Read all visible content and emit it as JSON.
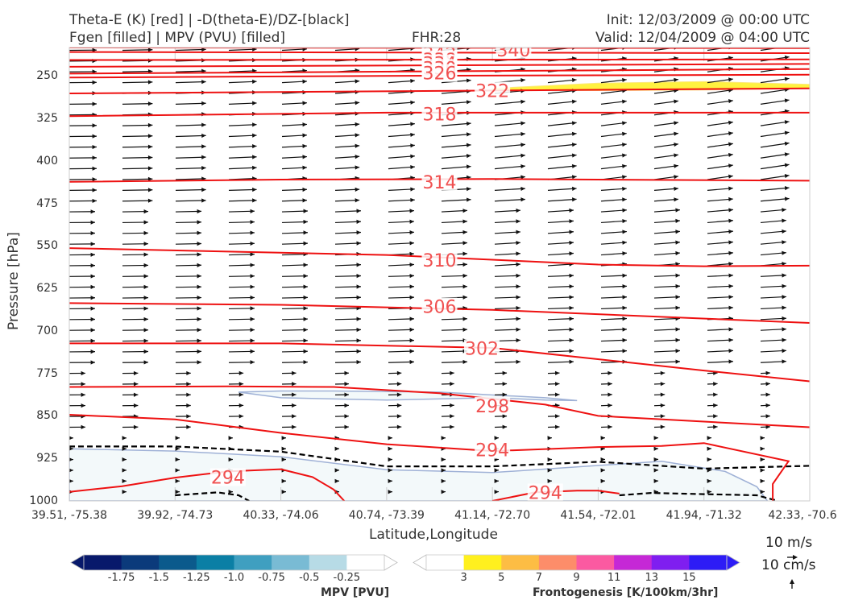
{
  "header": {
    "title_left_1": "Theta-E (K) [red] | -D(theta-E)/DZ-[black]",
    "title_left_2": "Fgen [filled] | MPV (PVU) [filled]",
    "fhr": "FHR:28",
    "init": "Init: 12/03/2009 @ 00:00 UTC",
    "valid": "Valid: 12/04/2009 @ 04:00 UTC"
  },
  "chart_data": {
    "type": "cross-section",
    "xlabel": "Latitude,Longitude",
    "ylabel": "Pressure [hPa]",
    "x_ticks": [
      "39.51, -75.38",
      "39.92, -74.73",
      "40.33, -74.06",
      "40.74, -73.39",
      "41.14, -72.70",
      "41.54, -72.01",
      "41.94, -71.32",
      "42.33, -70.6"
    ],
    "y_ticks": [
      250,
      325,
      400,
      475,
      550,
      625,
      700,
      775,
      850,
      925,
      1000
    ],
    "ylim": [
      1000,
      200
    ],
    "theta_e_contours": [
      {
        "label": "340",
        "points": [
          [
            0,
            200
          ],
          [
            7,
            201
          ]
        ]
      },
      {
        "label": "342",
        "points": [
          [
            0,
            208
          ],
          [
            7,
            210
          ]
        ]
      },
      {
        "label": "338",
        "points": [
          [
            0,
            222
          ],
          [
            7,
            221
          ]
        ]
      },
      {
        "label": "334",
        "points": [
          [
            0,
            234
          ],
          [
            7,
            229
          ]
        ]
      },
      {
        "label": "330",
        "points": [
          [
            0,
            246
          ],
          [
            7,
            238
          ]
        ]
      },
      {
        "label": "326",
        "points": [
          [
            0,
            253
          ],
          [
            3,
            250
          ],
          [
            5,
            249
          ],
          [
            7,
            248
          ]
        ]
      },
      {
        "label": "322",
        "points": [
          [
            0,
            281
          ],
          [
            7,
            272
          ]
        ]
      },
      {
        "label": "318",
        "points": [
          [
            0,
            321
          ],
          [
            3,
            315
          ],
          [
            7,
            315
          ]
        ]
      },
      {
        "label": "314",
        "points": [
          [
            0,
            437
          ],
          [
            2,
            433
          ],
          [
            4,
            432
          ],
          [
            7,
            435
          ]
        ]
      },
      {
        "label": "310",
        "points": [
          [
            0,
            554
          ],
          [
            3,
            566
          ],
          [
            5,
            583
          ],
          [
            6,
            586
          ],
          [
            7,
            585
          ]
        ]
      },
      {
        "label": "306",
        "points": [
          [
            0,
            651
          ],
          [
            2,
            654
          ],
          [
            4,
            663
          ],
          [
            7,
            686
          ]
        ]
      },
      {
        "label": "302",
        "points": [
          [
            0,
            722
          ],
          [
            2,
            722
          ],
          [
            4,
            730
          ],
          [
            6,
            770
          ],
          [
            7,
            789
          ]
        ]
      },
      {
        "label": "298",
        "points": [
          [
            0,
            799
          ],
          [
            1.5,
            798
          ],
          [
            2.5,
            799
          ],
          [
            3.5,
            810
          ],
          [
            4.5,
            830
          ],
          [
            5,
            850
          ],
          [
            6,
            860
          ],
          [
            7,
            870
          ]
        ]
      },
      {
        "label": "294",
        "points": [
          [
            0,
            848
          ],
          [
            1,
            856
          ],
          [
            2,
            880
          ],
          [
            3,
            900
          ],
          [
            4,
            912
          ],
          [
            5,
            905
          ],
          [
            5.6,
            903
          ],
          [
            6,
            898
          ],
          [
            6.8,
            930
          ],
          [
            6.65,
            970
          ],
          [
            6.65,
            1000
          ]
        ]
      },
      {
        "label": "294",
        "points": [
          [
            0,
            984
          ],
          [
            0.5,
            974
          ],
          [
            1,
            959
          ],
          [
            1.5,
            948
          ],
          [
            2,
            944
          ],
          [
            2.3,
            958
          ],
          [
            2.5,
            980
          ],
          [
            2.6,
            1000
          ]
        ]
      },
      {
        "label": "294",
        "points": [
          [
            4,
            1000
          ],
          [
            4.4,
            985
          ],
          [
            4.8,
            982
          ],
          [
            5,
            982
          ],
          [
            5.2,
            987
          ]
        ]
      }
    ],
    "dthetae_dz_contours": [
      {
        "style": "dashed",
        "points": [
          [
            0,
            904
          ],
          [
            1,
            904
          ],
          [
            2,
            913
          ],
          [
            3,
            939
          ],
          [
            4,
            939
          ],
          [
            5,
            931
          ],
          [
            6,
            943
          ],
          [
            7,
            938
          ]
        ]
      },
      {
        "style": "dashed",
        "points": [
          [
            1,
            990
          ],
          [
            1.4,
            985
          ],
          [
            1.6,
            990
          ],
          [
            1.7,
            1000
          ]
        ]
      },
      {
        "style": "dashed",
        "points": [
          [
            5.2,
            990
          ],
          [
            5.5,
            986
          ],
          [
            6,
            988
          ],
          [
            6.5,
            990
          ],
          [
            6.7,
            1000
          ]
        ]
      }
    ],
    "mpv_regions": [
      {
        "points": [
          [
            0,
            908
          ],
          [
            1,
            912
          ],
          [
            2,
            922
          ],
          [
            3,
            945
          ],
          [
            4,
            950
          ],
          [
            4.8,
            940
          ],
          [
            5.6,
            930
          ],
          [
            6.2,
            948
          ],
          [
            6.5,
            975
          ],
          [
            6.6,
            1000
          ],
          [
            0,
            1000
          ]
        ]
      },
      {
        "points": [
          [
            1.6,
            808
          ],
          [
            2,
            818
          ],
          [
            3,
            822
          ],
          [
            4,
            818
          ],
          [
            4.5,
            822
          ],
          [
            4.8,
            823
          ],
          [
            4.5,
            818
          ],
          [
            3.5,
            808
          ],
          [
            2.5,
            806
          ],
          [
            2,
            806
          ]
        ]
      }
    ],
    "fgen_region": {
      "level": 3,
      "points": [
        [
          4,
          272
        ],
        [
          5,
          263
        ],
        [
          6,
          260
        ],
        [
          7,
          265
        ],
        [
          7,
          272
        ],
        [
          6,
          275
        ],
        [
          5,
          276
        ],
        [
          4,
          275
        ]
      ]
    },
    "mpv_colorbar": {
      "label": "MPV [PVU]",
      "ticks": [
        "-1.75",
        "-1.5",
        "-1.25",
        "-1.0",
        "-0.75",
        "-0.5",
        "-0.25"
      ],
      "colors": [
        "#08196b",
        "#0b3a7b",
        "#0b5a8c",
        "#0b7fa5",
        "#3f9fc0",
        "#79bbd4",
        "#b7dbe6",
        "#ffffff"
      ]
    },
    "fgen_colorbar": {
      "label": "Frontogenesis [K/100km/3hr]",
      "ticks": [
        "3",
        "5",
        "7",
        "9",
        "11",
        "13",
        "15"
      ],
      "colors": [
        "#ffffff",
        "#fff01e",
        "#fdbd44",
        "#fd8d6a",
        "#fb5aa1",
        "#c528d6",
        "#7f1ef0",
        "#2d1cf6"
      ]
    },
    "vector_key": {
      "horizontal": "10 m/s",
      "vertical": "10 cm/s"
    }
  }
}
